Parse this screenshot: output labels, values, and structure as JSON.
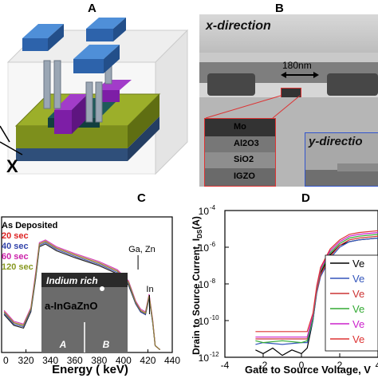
{
  "panels": {
    "a": {
      "letter": "A",
      "axis_x": "X"
    },
    "b": {
      "letter": "B",
      "x_direction": "x-direction",
      "scale": "180nm",
      "layers": [
        "Mo",
        "Al2O3",
        "SiO2",
        "IGZO"
      ],
      "y_direction": "y-directio"
    },
    "c": {
      "letter": "C"
    },
    "d": {
      "letter": "D"
    }
  },
  "chart_data": [
    {
      "panel": "C",
      "type": "line",
      "xlabel": "Energy ( keV)",
      "ylabel": "",
      "xlim": [
        300,
        440
      ],
      "x_ticks": [
        "0",
        "320",
        "340",
        "360",
        "380",
        "400",
        "420",
        "440"
      ],
      "legend": [
        "As Deposited",
        "20 sec",
        "40 sec",
        "60 sec",
        "120 sec"
      ],
      "legend_colors": [
        "#000000",
        "#dd2222",
        "#3344aa",
        "#cc22aa",
        "#889922"
      ],
      "annotations": [
        "Ga, Zn",
        "In"
      ],
      "inset": {
        "label_top": "Indium rich",
        "label_mid": "a-InGaZnO",
        "label_a": "A",
        "label_b": "B"
      },
      "series": [
        {
          "name": "As Deposited",
          "x": [
            302,
            310,
            318,
            324,
            328,
            331,
            336,
            345,
            360,
            380,
            395,
            404,
            410,
            414,
            418,
            421,
            424,
            426,
            430
          ],
          "y": [
            0.28,
            0.2,
            0.18,
            0.3,
            0.55,
            0.78,
            0.8,
            0.75,
            0.7,
            0.64,
            0.58,
            0.5,
            0.36,
            0.3,
            0.28,
            0.4,
            0.22,
            0.05,
            0.02
          ]
        },
        {
          "name": "20 sec",
          "x": [
            302,
            310,
            318,
            324,
            328,
            331,
            336,
            345,
            360,
            380,
            395,
            404,
            410,
            414,
            418,
            421,
            424,
            426,
            430
          ],
          "y": [
            0.3,
            0.22,
            0.2,
            0.32,
            0.58,
            0.8,
            0.82,
            0.77,
            0.72,
            0.66,
            0.6,
            0.52,
            0.37,
            0.31,
            0.29,
            0.42,
            0.23,
            0.05,
            0.02
          ]
        },
        {
          "name": "40 sec",
          "x": [
            302,
            310,
            318,
            324,
            328,
            331,
            336,
            345,
            360,
            380,
            395,
            404,
            410,
            414,
            418,
            421,
            424,
            426,
            430
          ],
          "y": [
            0.29,
            0.21,
            0.19,
            0.31,
            0.56,
            0.79,
            0.81,
            0.76,
            0.71,
            0.65,
            0.59,
            0.51,
            0.36,
            0.3,
            0.28,
            0.41,
            0.22,
            0.05,
            0.02
          ]
        },
        {
          "name": "60 sec",
          "x": [
            302,
            310,
            318,
            324,
            328,
            331,
            336,
            345,
            360,
            380,
            395,
            404,
            410,
            414,
            418,
            421,
            424,
            426,
            430
          ],
          "y": [
            0.31,
            0.23,
            0.21,
            0.33,
            0.59,
            0.81,
            0.83,
            0.78,
            0.73,
            0.67,
            0.61,
            0.53,
            0.38,
            0.32,
            0.3,
            0.43,
            0.24,
            0.05,
            0.02
          ]
        },
        {
          "name": "120 sec",
          "x": [
            302,
            310,
            318,
            324,
            328,
            331,
            336,
            345,
            360,
            380,
            395,
            404,
            410,
            414,
            418,
            421,
            424,
            426,
            430
          ],
          "y": [
            0.3,
            0.22,
            0.2,
            0.32,
            0.57,
            0.8,
            0.82,
            0.77,
            0.72,
            0.66,
            0.6,
            0.52,
            0.37,
            0.31,
            0.29,
            0.42,
            0.23,
            0.05,
            0.02
          ]
        }
      ]
    },
    {
      "panel": "D",
      "type": "line",
      "xlabel": "Gate to Source Voltage, V",
      "ylabel": "Drain to Source Current, I",
      "ylabel_sub": "DS",
      "ylabel_unit": "(A)",
      "xlim": [
        -4,
        4
      ],
      "ylim_exp": [
        -12,
        -4
      ],
      "log_scale": true,
      "x_ticks": [
        "-4",
        "-2",
        "0",
        "2",
        "4"
      ],
      "y_ticks": [
        "10",
        "10",
        "10",
        "10",
        "10"
      ],
      "y_tick_exps": [
        "-4",
        "-6",
        "-8",
        "-10",
        "-12"
      ],
      "legend_labels": [
        "Ve",
        "Ve",
        "Ve",
        "Ve",
        "Ve",
        "Ve"
      ],
      "legend_colors": [
        "#000000",
        "#3355bb",
        "#cc3333",
        "#33aa33",
        "#cc22cc",
        "#dd3333"
      ],
      "series": [
        {
          "color": "#000000",
          "x": [
            -2.4,
            -2,
            -1.5,
            -1,
            -0.5,
            0,
            0.3,
            0.6,
            0.8,
            1,
            1.5,
            2,
            2.5,
            3,
            4
          ],
          "y": [
            -11.6,
            -11.8,
            -11.5,
            -11.9,
            -11.6,
            -11.8,
            -11.5,
            -10,
            -8.4,
            -7.4,
            -6.4,
            -5.9,
            -5.7,
            -5.6,
            -5.5
          ]
        },
        {
          "color": "#3355bb",
          "x": [
            -2.4,
            -2,
            -1,
            0,
            0.3,
            0.6,
            0.8,
            1,
            1.5,
            2,
            2.5,
            3,
            4
          ],
          "y": [
            -11.3,
            -11.2,
            -11.3,
            -11.2,
            -11.2,
            -10,
            -8.5,
            -7.6,
            -6.6,
            -6.0,
            -5.7,
            -5.6,
            -5.5
          ]
        },
        {
          "color": "#cc3333",
          "x": [
            -2.4,
            -2,
            -1,
            0,
            0.3,
            0.6,
            0.8,
            1,
            1.5,
            2,
            2.5,
            3,
            4
          ],
          "y": [
            -11.0,
            -11.0,
            -11.0,
            -11.0,
            -11.0,
            -9.8,
            -8.4,
            -7.5,
            -6.5,
            -5.9,
            -5.6,
            -5.5,
            -5.4
          ]
        },
        {
          "color": "#33aa33",
          "x": [
            -2.4,
            -2,
            -1,
            0,
            0.3,
            0.6,
            0.8,
            1,
            1.5,
            2,
            2.5,
            3,
            4
          ],
          "y": [
            -11.1,
            -11.2,
            -11.1,
            -11.2,
            -11.1,
            -9.9,
            -8.3,
            -7.3,
            -6.3,
            -5.8,
            -5.5,
            -5.4,
            -5.3
          ]
        },
        {
          "color": "#cc22cc",
          "x": [
            -2.4,
            -2,
            -1,
            0,
            0.3,
            0.6,
            0.8,
            1,
            1.5,
            2,
            2.5,
            3,
            4
          ],
          "y": [
            -10.9,
            -10.9,
            -10.9,
            -10.9,
            -10.9,
            -9.7,
            -8.2,
            -7.2,
            -6.2,
            -5.7,
            -5.4,
            -5.3,
            -5.2
          ]
        },
        {
          "color": "#dd3333",
          "x": [
            -2.4,
            -2,
            -1,
            0,
            0.3,
            0.6,
            0.8,
            1,
            1.5,
            2,
            2.5,
            3,
            4
          ],
          "y": [
            -10.6,
            -10.6,
            -10.6,
            -10.6,
            -10.6,
            -9.6,
            -8.1,
            -7.1,
            -6.1,
            -5.6,
            -5.3,
            -5.2,
            -5.1
          ]
        }
      ]
    }
  ]
}
